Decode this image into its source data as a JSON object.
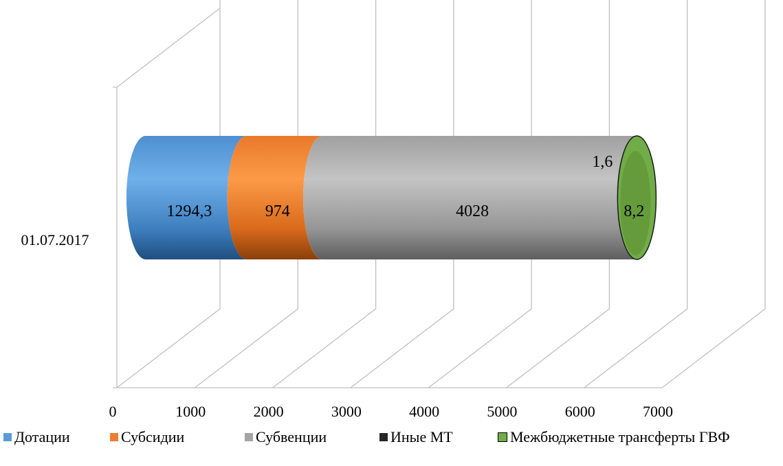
{
  "chart_data": {
    "type": "bar",
    "orientation": "horizontal",
    "stacked": true,
    "style": "3d-cylinder",
    "categories": [
      "01.07.2017"
    ],
    "xlim": [
      0,
      7000
    ],
    "xticks": [
      "0",
      "1000",
      "2000",
      "3000",
      "4000",
      "5000",
      "6000",
      "7000"
    ],
    "grid": true,
    "legend_position": "bottom",
    "series": [
      {
        "name": "Дотации",
        "values": [
          1294.3
        ],
        "label": "1294,3",
        "color": "#5B9BD5"
      },
      {
        "name": "Субсидии",
        "values": [
          974
        ],
        "label": "974",
        "color": "#ED7D31"
      },
      {
        "name": "Субвенции",
        "values": [
          4028
        ],
        "label": "4028",
        "color": "#A5A5A5"
      },
      {
        "name": "Иные МТ",
        "values": [
          1.6
        ],
        "label": "1,6",
        "color": "#262626"
      },
      {
        "name": "Межбюджетные трансферты ГВФ",
        "values": [
          8.2
        ],
        "label": "8,2",
        "color": "#70AD47"
      }
    ]
  }
}
